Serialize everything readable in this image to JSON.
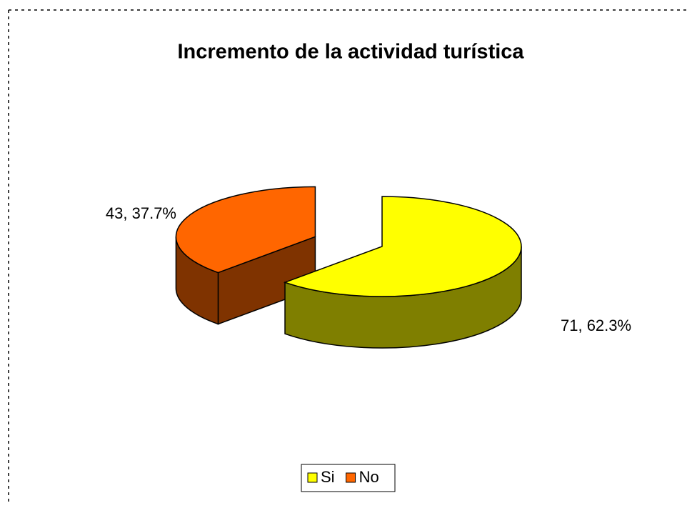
{
  "chart_data": {
    "type": "pie",
    "title": "Incremento de la actividad turística",
    "categories": [
      "Si",
      "No"
    ],
    "values": [
      71,
      43
    ],
    "value_labels": [
      "71, 62.3%",
      "43, 37.7%"
    ],
    "colors": [
      "#ffff00",
      "#ff6600"
    ],
    "legend": "bottom"
  }
}
